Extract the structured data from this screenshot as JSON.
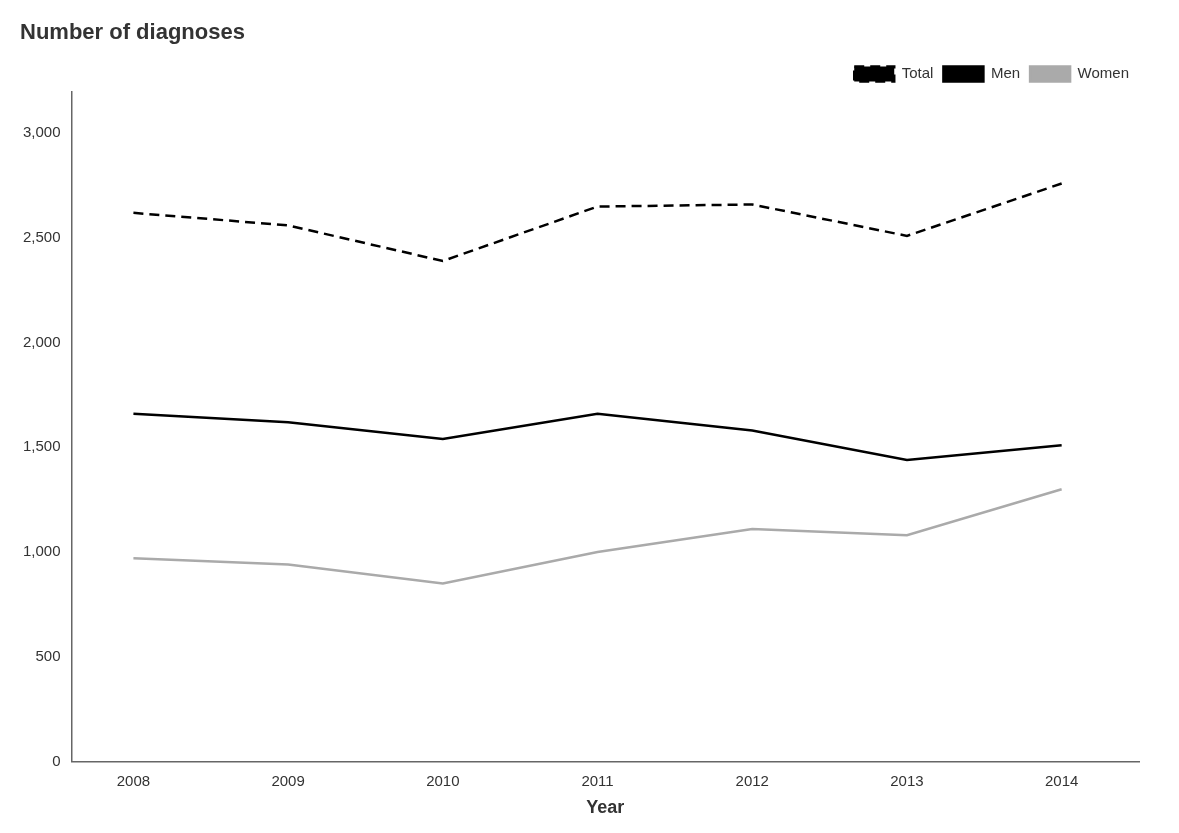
{
  "chart_data": {
    "type": "line",
    "title": "Number of diagnoses",
    "xlabel": "Year",
    "x": [
      2008,
      2009,
      2010,
      2011,
      2012,
      2013,
      2014
    ],
    "series": [
      {
        "name": "Total",
        "color": "#000000",
        "line_style": "dashed",
        "values": [
          2620,
          2560,
          2390,
          2650,
          2660,
          2510,
          2760
        ]
      },
      {
        "name": "Men",
        "color": "#000000",
        "line_style": "solid",
        "values": [
          1660,
          1620,
          1540,
          1660,
          1580,
          1440,
          1510
        ]
      },
      {
        "name": "Women",
        "color": "#aaaaaa",
        "line_style": "solid",
        "values": [
          970,
          940,
          850,
          1000,
          1110,
          1080,
          1300
        ]
      }
    ],
    "xlim": [
      2007.6,
      2014.5
    ],
    "xticks": [
      2008,
      2009,
      2010,
      2011,
      2012,
      2013,
      2014
    ],
    "ylim": [
      0,
      3200
    ],
    "yticks": [
      0,
      500,
      {
        "value": 1000,
        "label": "1,000"
      },
      {
        "value": 1500,
        "label": "1,500"
      },
      {
        "value": 2000,
        "label": "2,000"
      },
      {
        "value": 2500,
        "label": "2,500"
      },
      {
        "value": 3000,
        "label": "3,000"
      }
    ],
    "grid": false,
    "legend": "upper right"
  }
}
